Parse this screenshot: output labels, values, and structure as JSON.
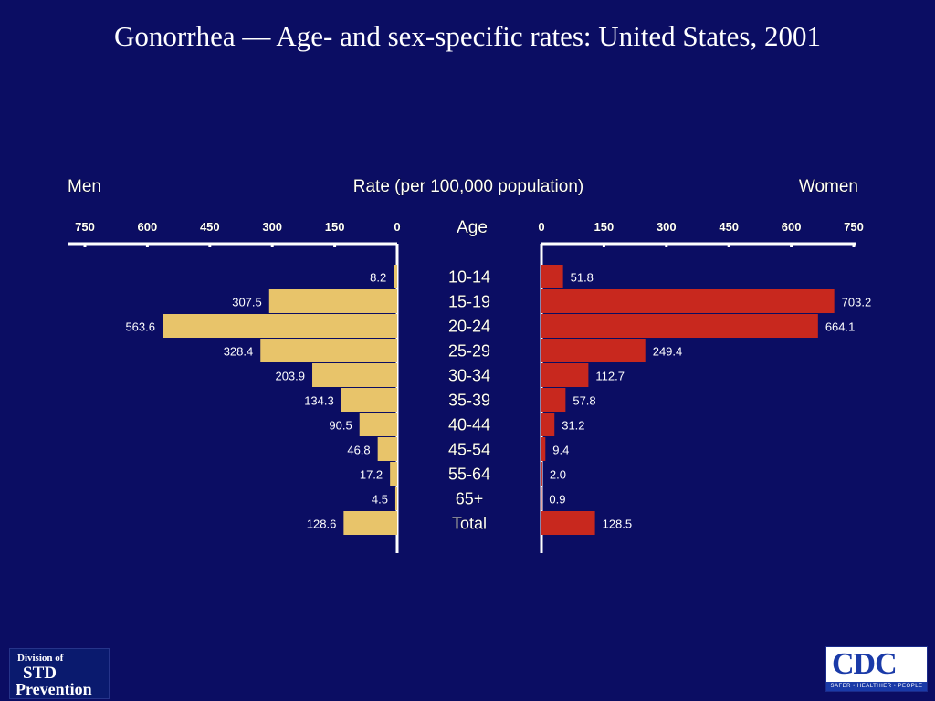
{
  "title": "Gonorrhea — Age- and sex-specific rates: United States, 2001",
  "colors": {
    "background": "#0b0d63",
    "men_bar": "#e8c46a",
    "women_bar": "#c8281e",
    "text": "#ffffff"
  },
  "chart_data": {
    "type": "bar",
    "orientation": "horizontal-back-to-back",
    "left_label": "Men",
    "right_label": "Women",
    "axis_title": "Rate (per 100,000 population)",
    "category_header": "Age",
    "xlim": [
      0,
      750
    ],
    "ticks_men": [
      "750",
      "600",
      "450",
      "300",
      "150",
      "0"
    ],
    "ticks_women": [
      "0",
      "150",
      "300",
      "450",
      "600",
      "750"
    ],
    "tick_values_men": [
      750,
      600,
      450,
      300,
      150,
      0
    ],
    "tick_values_women": [
      0,
      150,
      300,
      450,
      600,
      750
    ],
    "categories": [
      "10-14",
      "15-19",
      "20-24",
      "25-29",
      "30-34",
      "35-39",
      "40-44",
      "45-54",
      "55-64",
      "65+",
      "Total"
    ],
    "series": [
      {
        "name": "Men",
        "values": [
          8.2,
          307.5,
          563.6,
          328.4,
          203.9,
          134.3,
          90.5,
          46.8,
          17.2,
          4.5,
          128.6
        ],
        "labels": [
          "8.2",
          "307.5",
          "563.6",
          "328.4",
          "203.9",
          "134.3",
          "90.5",
          "46.8",
          "17.2",
          "4.5",
          "128.6"
        ]
      },
      {
        "name": "Women",
        "values": [
          51.8,
          703.2,
          664.1,
          249.4,
          112.7,
          57.8,
          31.2,
          9.4,
          2.0,
          0.9,
          128.5
        ],
        "labels": [
          "51.8",
          "703.2",
          "664.1",
          "249.4",
          "112.7",
          "57.8",
          "31.2",
          "9.4",
          "2.0",
          "0.9",
          "128.5"
        ]
      }
    ]
  },
  "logos": {
    "left": {
      "line1": "Division of",
      "line2": "STD",
      "line3": "Prevention"
    },
    "right": {
      "name": "CDC",
      "tagline": "SAFER • HEALTHIER • PEOPLE"
    }
  }
}
